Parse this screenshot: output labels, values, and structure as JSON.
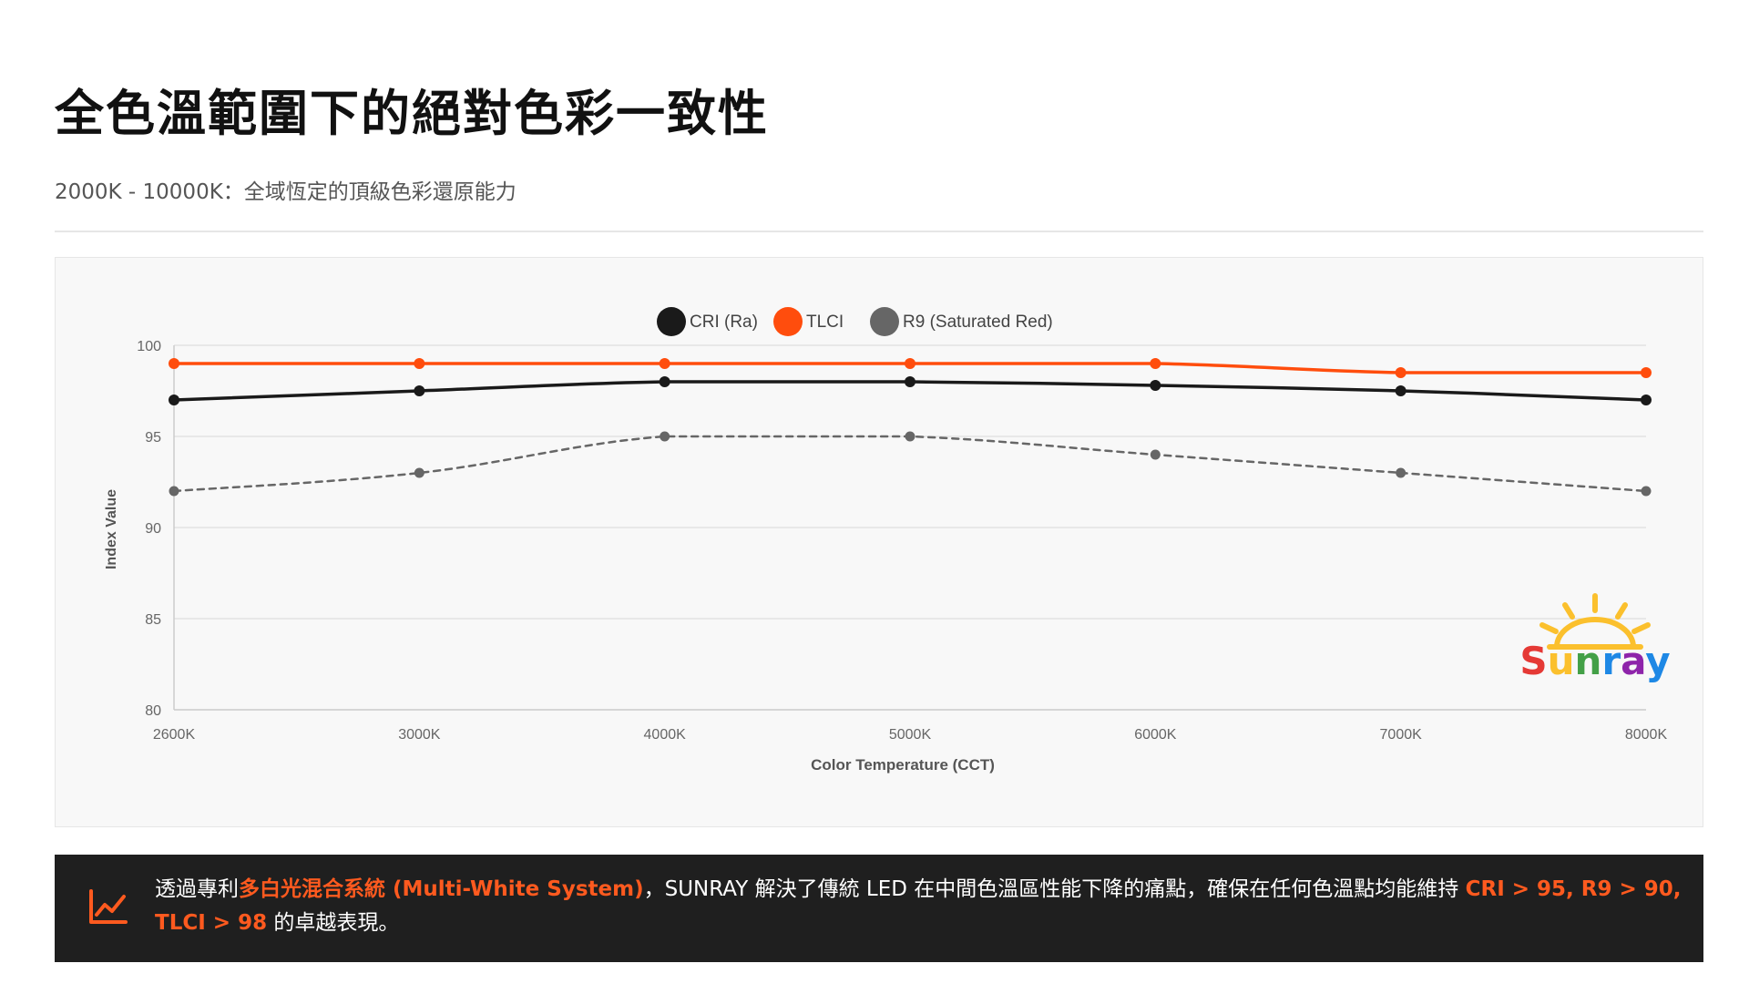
{
  "header": {
    "title": "全色溫範圍下的絕對色彩一致性",
    "subtitle": "2000K - 10000K：全域恆定的頂級色彩還原能力"
  },
  "chart_data": {
    "type": "line",
    "categories": [
      "2600K",
      "3000K",
      "4000K",
      "5000K",
      "6000K",
      "7000K",
      "8000K"
    ],
    "series": [
      {
        "name": "CRI (Ra)",
        "values": [
          97,
          97.5,
          98,
          98,
          97.8,
          97.5,
          97
        ],
        "color": "#1a1a1a",
        "style": "solid"
      },
      {
        "name": "TLCI",
        "values": [
          99,
          99,
          99,
          99,
          99,
          98.5,
          98.5
        ],
        "color": "#ff4d0d",
        "style": "solid"
      },
      {
        "name": "R9 (Saturated Red)",
        "values": [
          92,
          93,
          95,
          95,
          94,
          93,
          92
        ],
        "color": "#666666",
        "style": "dashed"
      }
    ],
    "xlabel": "Color Temperature (CCT)",
    "ylabel": "Index Value",
    "ylim": [
      80,
      100
    ],
    "yticks": [
      "80",
      "85",
      "90",
      "95",
      "100"
    ],
    "grid": true,
    "legend_position": "top-center"
  },
  "logo": {
    "text": "Sunray",
    "letter_colors": [
      "#e53935",
      "#fbc02d",
      "#43a047",
      "#1e88e5",
      "#8e24aa",
      "#1e88e5"
    ]
  },
  "banner": {
    "icon": "trend-line-icon",
    "text_1": "透過專利",
    "highlight_1": "多白光混合系統 (Multi-White System)",
    "text_2": "，SUNRAY 解決了傳統 LED 在中間色溫區性能下降的痛點，確保在任何色溫點均能維持 ",
    "highlight_2": "CRI > 95, R9 > 90, TLCI > 98",
    "text_3": " 的卓越表現。"
  },
  "colors": {
    "accent": "#ff5a1f",
    "banner_bg": "#1f1f1f",
    "panel_bg": "#f8f8f8"
  }
}
